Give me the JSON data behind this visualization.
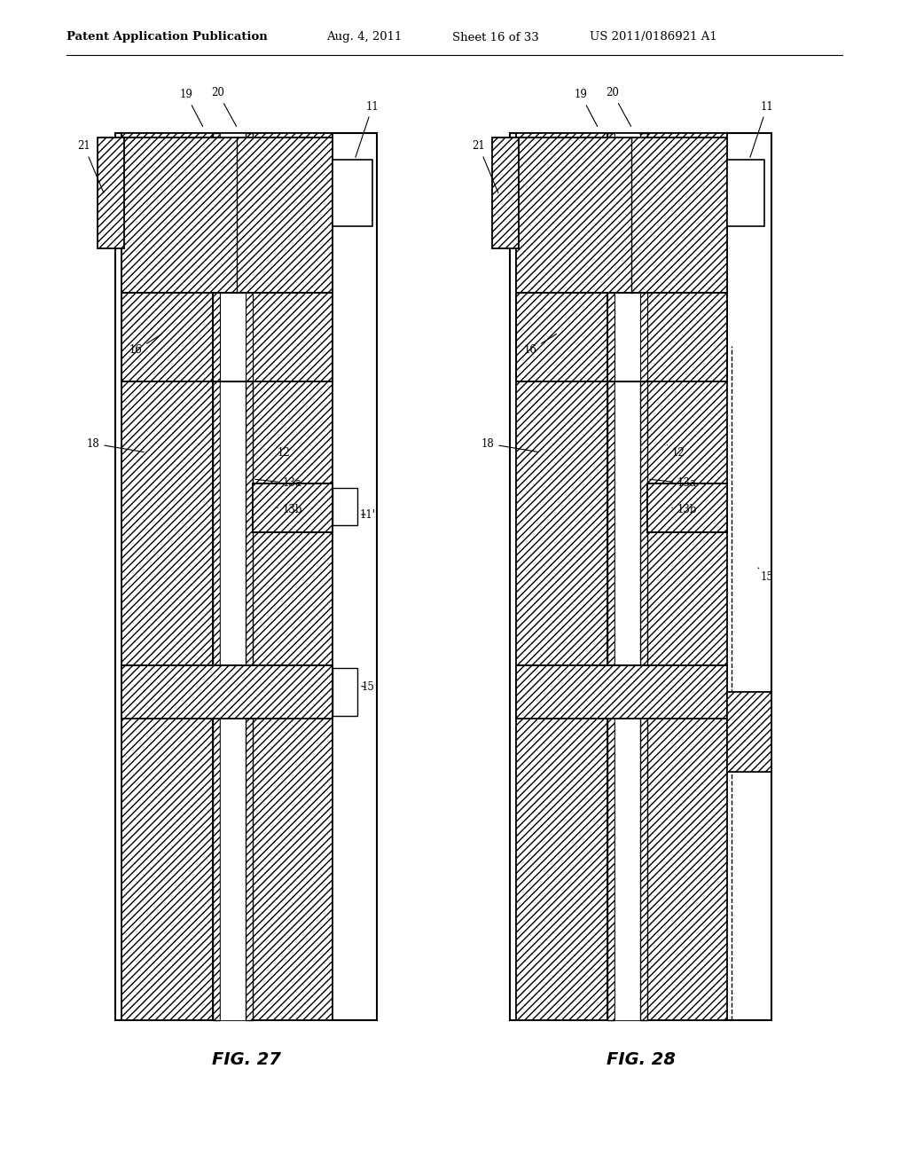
{
  "background_color": "#ffffff",
  "header_text": "Patent Application Publication",
  "header_date": "Aug. 4, 2011",
  "header_sheet": "Sheet 16 of 33",
  "header_patent": "US 2011/0186921 A1",
  "fig27_label": "FIG. 27",
  "fig28_label": "FIG. 28"
}
